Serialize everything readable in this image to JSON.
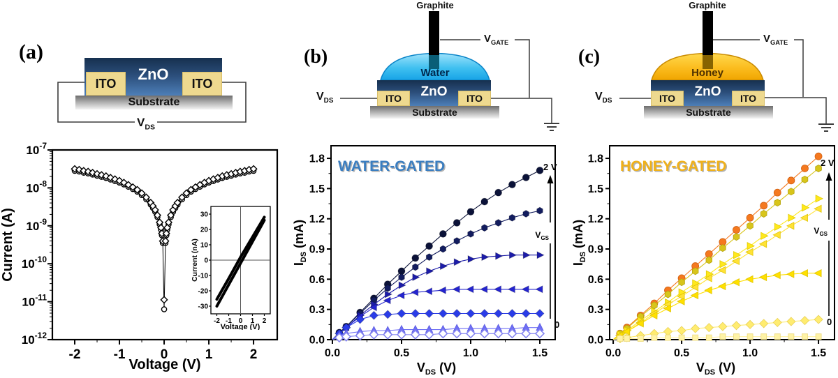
{
  "panels": {
    "a": {
      "tag": "(a)",
      "schematic": {
        "zno": "ZnO",
        "ito_l": "ITO",
        "ito_r": "ITO",
        "substrate": "Substrate",
        "vds_base": "V",
        "vds_sub": "DS",
        "colors": {
          "zno_top": "#16304f",
          "zno_bottom": "#4d7fb8",
          "ito": "#eed98f"
        }
      }
    },
    "b": {
      "tag": "(b)",
      "schematic": {
        "graphite": "Graphite",
        "liquid": "Water",
        "zno": "ZnO",
        "ito_l": "ITO",
        "ito_r": "ITO",
        "substrate": "Substrate",
        "vds_base": "V",
        "vds_sub": "DS",
        "vgate_base": "V",
        "vgate_sub": "GATE",
        "colors": {
          "droplet_top": "#9fe2fb",
          "droplet_bottom": "#17a3e6",
          "droplet_edge": "#0a84c8"
        }
      }
    },
    "c": {
      "tag": "(c)",
      "schematic": {
        "graphite": "Graphite",
        "liquid": "Honey",
        "zno": "ZnO",
        "ito_l": "ITO",
        "ito_r": "ITO",
        "substrate": "Substrate",
        "vds_base": "V",
        "vds_sub": "DS",
        "vgate_base": "V",
        "vgate_sub": "GATE",
        "colors": {
          "droplet_top": "#ffd94d",
          "droplet_bottom": "#f0a500",
          "droplet_edge": "#c98a00"
        }
      }
    }
  },
  "chart_data": [
    {
      "id": "chart-a-main",
      "type": "scatter",
      "y_scale": "log10",
      "xlabel": {
        "base": "Voltage (V)"
      },
      "ylabel": {
        "base": "Current (A)"
      },
      "x_ticks": [
        -2,
        -1,
        0,
        1,
        2
      ],
      "y_tick_exponents": [
        -7,
        -8,
        -9,
        -10,
        -11,
        -12
      ],
      "xlim": [
        -2.5,
        2.5
      ],
      "ylim_exponents": [
        -12,
        -7
      ],
      "points_format": [
        "voltage_V",
        "log10_current_A"
      ],
      "v": [
        -2.0,
        -1.9,
        -1.8,
        -1.7,
        -1.6,
        -1.5,
        -1.4,
        -1.3,
        -1.2,
        -1.1,
        -1.0,
        -0.9,
        -0.8,
        -0.7,
        -0.6,
        -0.5,
        -0.4,
        -0.3,
        -0.25,
        -0.2,
        -0.15,
        -0.1,
        -0.07,
        -0.05,
        -0.03,
        0,
        0.03,
        0.05,
        0.07,
        0.1,
        0.15,
        0.2,
        0.25,
        0.3,
        0.4,
        0.5,
        0.6,
        0.7,
        0.8,
        0.9,
        1.0,
        1.1,
        1.2,
        1.3,
        1.4,
        1.5,
        1.6,
        1.7,
        1.8,
        1.9,
        2.0
      ],
      "series": [
        {
          "name": "sweep-circles",
          "marker": "circle",
          "color": "#000000",
          "open": true,
          "log_i": [
            -7.55,
            -7.57,
            -7.6,
            -7.62,
            -7.65,
            -7.68,
            -7.71,
            -7.74,
            -7.78,
            -7.82,
            -7.86,
            -7.91,
            -7.97,
            -8.03,
            -8.1,
            -8.19,
            -8.3,
            -8.44,
            -8.53,
            -8.63,
            -8.77,
            -8.96,
            -9.1,
            -9.25,
            -9.45,
            -11.2,
            -9.45,
            -9.25,
            -9.1,
            -8.96,
            -8.77,
            -8.63,
            -8.53,
            -8.44,
            -8.3,
            -8.19,
            -8.1,
            -8.03,
            -7.97,
            -7.91,
            -7.86,
            -7.82,
            -7.78,
            -7.74,
            -7.71,
            -7.68,
            -7.65,
            -7.62,
            -7.6,
            -7.57,
            -7.55
          ]
        },
        {
          "name": "sweep-diamonds",
          "marker": "diamond",
          "color": "#000000",
          "open": true,
          "log_i": [
            -7.5,
            -7.52,
            -7.55,
            -7.57,
            -7.6,
            -7.63,
            -7.66,
            -7.69,
            -7.73,
            -7.77,
            -7.81,
            -7.86,
            -7.92,
            -7.98,
            -8.05,
            -8.14,
            -8.25,
            -8.39,
            -8.48,
            -8.58,
            -8.72,
            -8.91,
            -9.05,
            -9.2,
            -9.4,
            -10.95,
            -9.4,
            -9.2,
            -9.05,
            -8.91,
            -8.72,
            -8.58,
            -8.48,
            -8.39,
            -8.25,
            -8.14,
            -8.05,
            -7.98,
            -7.92,
            -7.86,
            -7.81,
            -7.77,
            -7.73,
            -7.69,
            -7.66,
            -7.63,
            -7.6,
            -7.57,
            -7.55,
            -7.52,
            -7.5
          ]
        }
      ]
    },
    {
      "id": "chart-a-inset",
      "type": "line",
      "xlabel": {
        "base": "Voltage (V)"
      },
      "ylabel": {
        "base": "Current (nA)"
      },
      "x_ticks": [
        -2,
        -1,
        0,
        1,
        2
      ],
      "y_ticks": [
        30,
        20,
        10,
        0,
        -10,
        -20,
        -30
      ],
      "xlim": [
        -2.5,
        2.5
      ],
      "ylim": [
        -35,
        35
      ],
      "series": [
        {
          "name": "hysteresis-branch-down",
          "color": "#000000",
          "width": 4,
          "points": [
            [
              -2,
              -30
            ],
            [
              -1,
              -16
            ],
            [
              0,
              -2
            ],
            [
              1,
              12
            ],
            [
              2,
              26
            ]
          ]
        },
        {
          "name": "hysteresis-branch-up",
          "color": "#000000",
          "width": 4,
          "points": [
            [
              -2,
              -25.5
            ],
            [
              -1,
              -12
            ],
            [
              0,
              2
            ],
            [
              1,
              15
            ],
            [
              2,
              28
            ]
          ]
        }
      ]
    },
    {
      "id": "chart-b",
      "type": "scatter",
      "title": "WATER-GATED",
      "title_color": "#3b7ec0",
      "xlabel": {
        "base": "V",
        "sub": "DS",
        "suffix": " (V)"
      },
      "ylabel": {
        "base": "I",
        "sub": "DS",
        "suffix": " (mA)"
      },
      "x_ticks": [
        0.0,
        0.5,
        1.0,
        1.5
      ],
      "y_ticks": [
        0.0,
        0.3,
        0.6,
        0.9,
        1.2,
        1.5,
        1.8
      ],
      "xlim": [
        0,
        1.5
      ],
      "ylim": [
        0,
        1.8
      ],
      "x": [
        0.05,
        0.1,
        0.2,
        0.3,
        0.4,
        0.5,
        0.6,
        0.7,
        0.8,
        0.9,
        1.0,
        1.1,
        1.2,
        1.3,
        1.4,
        1.5
      ],
      "annotations": {
        "gate_top": "2 V",
        "gate_bottom": "0",
        "arrow_label_base": "V",
        "arrow_label_sub": "GS"
      },
      "series": [
        {
          "name": "gate-step-7",
          "gate_label": "2 V",
          "marker": "circle",
          "color": "#0b1238",
          "values": [
            0.07,
            0.13,
            0.27,
            0.41,
            0.55,
            0.68,
            0.81,
            0.93,
            1.05,
            1.16,
            1.27,
            1.37,
            1.46,
            1.54,
            1.61,
            1.68
          ]
        },
        {
          "name": "gate-step-6",
          "marker": "hexagon",
          "color": "#121c5e",
          "values": [
            0.07,
            0.13,
            0.26,
            0.39,
            0.51,
            0.62,
            0.72,
            0.82,
            0.9,
            0.98,
            1.05,
            1.11,
            1.16,
            1.21,
            1.25,
            1.28
          ]
        },
        {
          "name": "gate-step-5",
          "marker": "tri-right",
          "color": "#1c1ca8",
          "values": [
            0.06,
            0.12,
            0.24,
            0.35,
            0.45,
            0.54,
            0.62,
            0.68,
            0.73,
            0.77,
            0.8,
            0.82,
            0.83,
            0.84,
            0.84,
            0.84
          ]
        },
        {
          "name": "gate-step-4",
          "marker": "tri-left",
          "color": "#2424cf",
          "values": [
            0.06,
            0.12,
            0.23,
            0.32,
            0.39,
            0.44,
            0.47,
            0.48,
            0.49,
            0.5,
            0.5,
            0.5,
            0.5,
            0.5,
            0.5,
            0.5
          ]
        },
        {
          "name": "gate-step-3",
          "marker": "diamond",
          "color": "#2a3ce8",
          "values": [
            0.06,
            0.12,
            0.2,
            0.24,
            0.25,
            0.26,
            0.26,
            0.26,
            0.26,
            0.26,
            0.26,
            0.26,
            0.26,
            0.26,
            0.26,
            0.26
          ]
        },
        {
          "name": "gate-step-2",
          "marker": "tri-up",
          "color": "#6e6ef5",
          "edge": "#5c5ce0",
          "values": [
            0.04,
            0.06,
            0.08,
            0.09,
            0.09,
            0.1,
            0.1,
            0.1,
            0.1,
            0.11,
            0.11,
            0.11,
            0.11,
            0.11,
            0.12,
            0.12
          ]
        },
        {
          "name": "gate-step-1",
          "gate_label": "0",
          "marker": "diamond",
          "color": "#ffffff",
          "open": true,
          "edge": "#8585f0",
          "values": [
            0.02,
            0.03,
            0.04,
            0.05,
            0.05,
            0.05,
            0.05,
            0.05,
            0.06,
            0.06,
            0.06,
            0.06,
            0.06,
            0.06,
            0.06,
            0.06
          ]
        }
      ]
    },
    {
      "id": "chart-c",
      "type": "scatter",
      "title": "HONEY-GATED",
      "title_color": "#f0b11a",
      "xlabel": {
        "base": "V",
        "sub": "DS",
        "suffix": " (V)"
      },
      "ylabel": {
        "base": "I",
        "sub": "DS",
        "suffix": " (mA)"
      },
      "x_ticks": [
        0.0,
        0.5,
        1.0,
        1.5
      ],
      "y_ticks": [
        0.0,
        0.3,
        0.6,
        0.9,
        1.2,
        1.5,
        1.8
      ],
      "xlim": [
        0,
        1.5
      ],
      "ylim": [
        0,
        1.8
      ],
      "x": [
        0.05,
        0.1,
        0.2,
        0.3,
        0.4,
        0.5,
        0.6,
        0.7,
        0.8,
        0.9,
        1.0,
        1.1,
        1.2,
        1.3,
        1.4,
        1.5
      ],
      "annotations": {
        "gate_top": "2 V",
        "gate_bottom": "0",
        "arrow_label_base": "V",
        "arrow_label_sub": "GS"
      },
      "series": [
        {
          "name": "gate-step-7",
          "gate_label": "2 V",
          "marker": "circle",
          "color": "#f5791f",
          "edge": "#d05f10",
          "values": [
            0.06,
            0.12,
            0.24,
            0.36,
            0.49,
            0.61,
            0.73,
            0.85,
            0.97,
            1.09,
            1.21,
            1.33,
            1.46,
            1.58,
            1.7,
            1.82
          ]
        },
        {
          "name": "gate-step-6",
          "marker": "hexagon",
          "color": "#d8c51a",
          "edge": "#b5a410",
          "values": [
            0.06,
            0.11,
            0.23,
            0.34,
            0.45,
            0.57,
            0.68,
            0.79,
            0.91,
            1.02,
            1.13,
            1.25,
            1.36,
            1.47,
            1.59,
            1.7
          ]
        },
        {
          "name": "gate-step-5",
          "marker": "tri-right",
          "color": "#ffe81c",
          "edge": "#e0ca00",
          "values": [
            0.05,
            0.09,
            0.19,
            0.28,
            0.37,
            0.47,
            0.56,
            0.65,
            0.75,
            0.84,
            0.93,
            1.03,
            1.12,
            1.21,
            1.31,
            1.4
          ]
        },
        {
          "name": "gate-step-4",
          "marker": "tri-left",
          "color": "#ffe235",
          "edge": "#e0c400",
          "values": [
            0.04,
            0.08,
            0.17,
            0.26,
            0.35,
            0.43,
            0.52,
            0.61,
            0.69,
            0.78,
            0.87,
            0.95,
            1.04,
            1.13,
            1.21,
            1.3
          ]
        },
        {
          "name": "gate-step-3",
          "marker": "tri-left",
          "color": "#ffe000",
          "edge": "#e0c400",
          "values": [
            0.04,
            0.08,
            0.16,
            0.24,
            0.31,
            0.38,
            0.44,
            0.49,
            0.53,
            0.57,
            0.6,
            0.62,
            0.64,
            0.65,
            0.66,
            0.66
          ]
        },
        {
          "name": "gate-step-2",
          "marker": "diamond",
          "color": "#ffec70",
          "edge": "#e8d055",
          "values": [
            0.01,
            0.02,
            0.04,
            0.06,
            0.08,
            0.09,
            0.11,
            0.12,
            0.13,
            0.14,
            0.15,
            0.16,
            0.17,
            0.18,
            0.19,
            0.2
          ]
        },
        {
          "name": "gate-step-1",
          "gate_label": "0",
          "marker": "square",
          "color": "#fff3a6",
          "edge": "#ecd97f",
          "values": [
            0.01,
            0.01,
            0.01,
            0.02,
            0.02,
            0.02,
            0.02,
            0.02,
            0.03,
            0.03,
            0.03,
            0.03,
            0.03,
            0.03,
            0.03,
            0.03
          ]
        }
      ]
    }
  ]
}
